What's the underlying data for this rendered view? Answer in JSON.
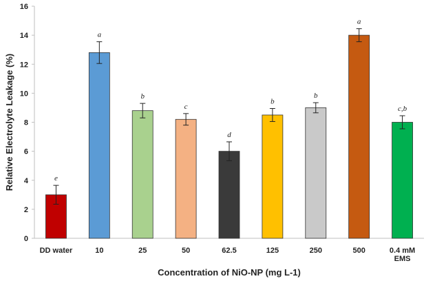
{
  "chart_data": {
    "type": "bar",
    "categories": [
      "DD water",
      "10",
      "25",
      "50",
      "62.5",
      "125",
      "250",
      "500",
      "0.4 mM\nEMS"
    ],
    "values": [
      3.0,
      12.8,
      8.8,
      8.2,
      6.0,
      8.5,
      9.0,
      14.0,
      8.0
    ],
    "error": [
      0.65,
      0.75,
      0.5,
      0.4,
      0.65,
      0.45,
      0.35,
      0.45,
      0.45
    ],
    "significance": [
      "e",
      "a",
      "b",
      "c",
      "d",
      "b",
      "b",
      "a",
      "c,b"
    ],
    "colors": [
      "#c00000",
      "#5b9bd5",
      "#a9d18e",
      "#f4b183",
      "#3a3a3a",
      "#ffc000",
      "#c9c9c9",
      "#c55a11",
      "#00b050"
    ],
    "title": "",
    "xlabel": "Concentration of NiO-NP (mg L-1)",
    "ylabel": "Relative Electrolyte Leakage (%)",
    "ylim": [
      0,
      16
    ],
    "yticks": [
      0,
      2,
      4,
      6,
      8,
      10,
      12,
      14,
      16
    ],
    "grid": false,
    "legend": "none"
  }
}
